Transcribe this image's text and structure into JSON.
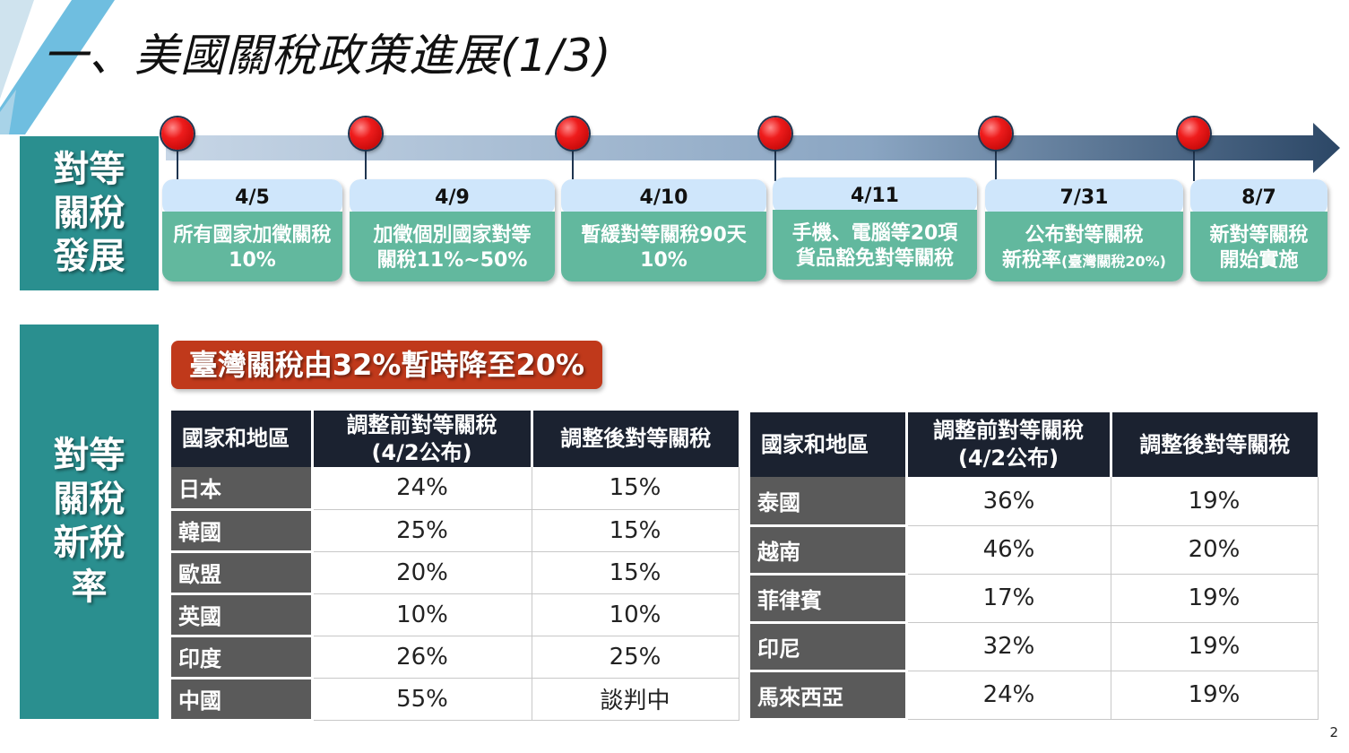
{
  "title": "一、美國關稅政策進展(1/3)",
  "side_labels": {
    "timeline": "對等關稅發展",
    "rates": "對等關稅新稅率"
  },
  "timeline": [
    {
      "date": "4/5",
      "line1": "所有國家加徵關稅",
      "line2": "10%",
      "line2_note": ""
    },
    {
      "date": "4/9",
      "line1": "加徵個別國家對等",
      "line2": "關稅11%~50%",
      "line2_note": ""
    },
    {
      "date": "4/10",
      "line1": "暫緩對等關稅90天",
      "line2": "10%",
      "line2_note": ""
    },
    {
      "date": "4/11",
      "line1": "手機、電腦等20項",
      "line2": "貨品豁免對等關稅",
      "line2_note": ""
    },
    {
      "date": "7/31",
      "line1": "公布對等關稅",
      "line2": "新稅率",
      "line2_note": "(臺灣關稅20%)"
    },
    {
      "date": "8/7",
      "line1": "新對等關稅",
      "line2": "開始實施",
      "line2_note": ""
    }
  ],
  "banner": "臺灣關稅由32%暫時降至20%",
  "table_left": {
    "headers": [
      "國家和地區",
      "調整前對等關稅",
      "(4/2公布)",
      "調整後對等關稅"
    ],
    "rows": [
      {
        "country": "日本",
        "before": "24%",
        "after": "15%"
      },
      {
        "country": "韓國",
        "before": "25%",
        "after": "15%"
      },
      {
        "country": "歐盟",
        "before": "20%",
        "after": "15%"
      },
      {
        "country": "英國",
        "before": "10%",
        "after": "10%"
      },
      {
        "country": "印度",
        "before": "26%",
        "after": "25%"
      },
      {
        "country": "中國",
        "before": "55%",
        "after": "談判中"
      }
    ]
  },
  "table_right": {
    "headers": [
      "國家和地區",
      "調整前對等關稅",
      "(4/2公布)",
      "調整後對等關稅"
    ],
    "rows": [
      {
        "country": "泰國",
        "before": "36%",
        "after": "19%"
      },
      {
        "country": "越南",
        "before": "46%",
        "after": "20%"
      },
      {
        "country": "菲律賓",
        "before": "17%",
        "after": "19%"
      },
      {
        "country": "印尼",
        "before": "32%",
        "after": "19%"
      },
      {
        "country": "馬來西亞",
        "before": "24%",
        "after": "19%"
      }
    ]
  },
  "page_number": "2",
  "colors": {
    "teal": "#2a8f8f",
    "event_green": "#62b89e",
    "date_blue": "#cfe6fb",
    "banner_red": "#c0391b",
    "header_dark": "#1b2230",
    "country_gray": "#5a5a5a"
  }
}
